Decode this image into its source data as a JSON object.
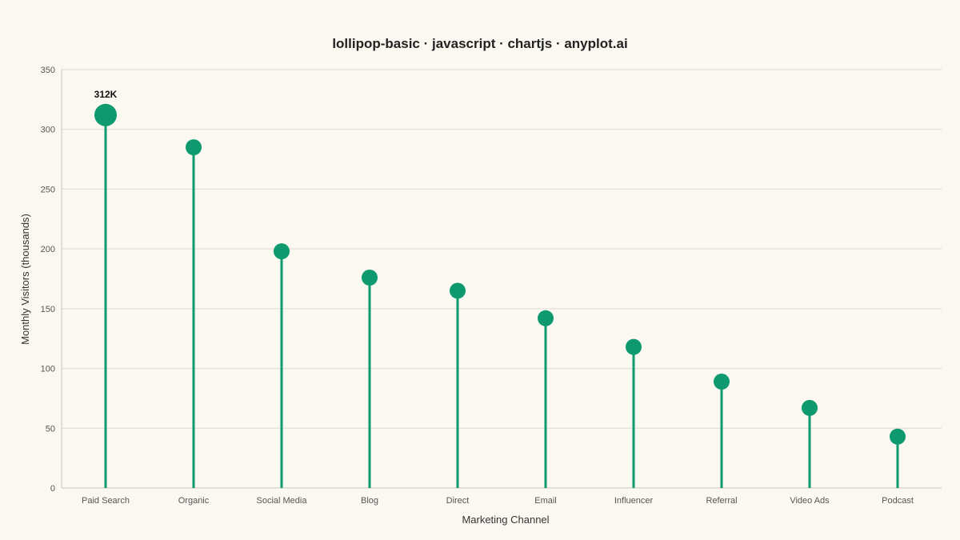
{
  "chart_data": {
    "type": "lollipop",
    "title": "lollipop-basic · javascript · chartjs · anyplot.ai",
    "xlabel": "Marketing Channel",
    "ylabel": "Monthly Visitors (thousands)",
    "ylim": [
      0,
      350
    ],
    "yticks": [
      0,
      50,
      100,
      150,
      200,
      250,
      300,
      350
    ],
    "categories": [
      "Paid Search",
      "Organic",
      "Social Media",
      "Blog",
      "Direct",
      "Email",
      "Influencer",
      "Referral",
      "Video Ads",
      "Podcast"
    ],
    "values": [
      312,
      285,
      198,
      176,
      165,
      142,
      118,
      89,
      67,
      43
    ],
    "annotations": [
      {
        "category": "Paid Search",
        "text": "312K"
      }
    ],
    "highlight_index": 0,
    "grid": true,
    "color": "#0E9A6E"
  }
}
